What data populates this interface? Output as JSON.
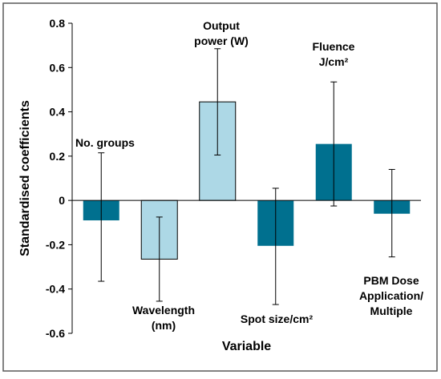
{
  "chart_data": {
    "type": "bar",
    "title": "",
    "xlabel": "Variable",
    "ylabel": "Standardised coefficients",
    "ylim": [
      -0.6,
      0.8
    ],
    "y_ticks": [
      "0.8",
      "0.6",
      "0.4",
      "0.2",
      "0",
      "-0.2",
      "-0.4",
      "-0.6"
    ],
    "grid": false,
    "legend": "none",
    "categories": [
      {
        "lines": [
          "No. groups"
        ]
      },
      {
        "lines": [
          "Wavelength",
          "(nm)"
        ]
      },
      {
        "lines": [
          "Output",
          "power (W)"
        ]
      },
      {
        "lines": [
          "Spot size/cm²"
        ]
      },
      {
        "lines": [
          "Fluence",
          "J/cm²"
        ]
      },
      {
        "lines": [
          "PBM Dose",
          "Application/",
          "Multiple"
        ]
      }
    ],
    "values": [
      -0.09,
      -0.265,
      0.445,
      -0.205,
      0.255,
      -0.06
    ],
    "error_low": [
      -0.365,
      -0.455,
      0.205,
      -0.47,
      -0.025,
      -0.255
    ],
    "error_high": [
      0.215,
      -0.075,
      0.685,
      0.055,
      0.535,
      0.14
    ],
    "colors": {
      "dark_bar": "#00708f",
      "light_bar": "#add8e6",
      "light_bar_border": "#000000",
      "axis": "#000000",
      "frame": "#595959"
    },
    "bar_styles": [
      "dark",
      "light",
      "light",
      "dark",
      "dark",
      "dark"
    ]
  }
}
